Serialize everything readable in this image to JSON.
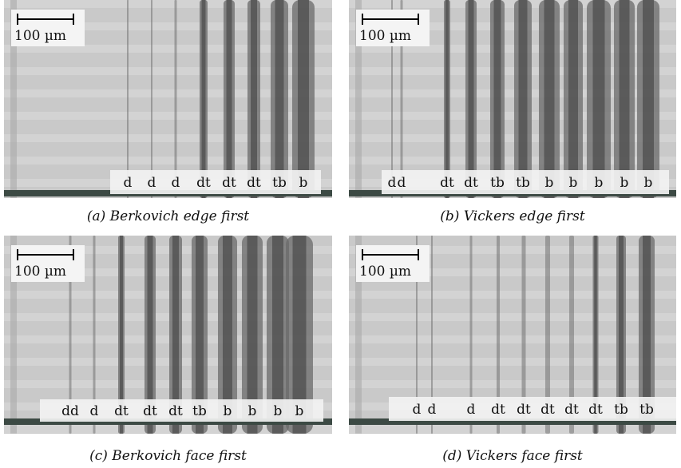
{
  "panels": [
    {
      "scale_label": "100 µm",
      "labels": [
        "d",
        "d",
        "d",
        "dt",
        "dt",
        "dt",
        "tb",
        "b"
      ],
      "caption": "(a) Berkovich edge first"
    },
    {
      "scale_label": "100 µm",
      "labels": [
        "d",
        "d",
        "dt",
        "dt",
        "tb",
        "tb",
        "b",
        "b",
        "b",
        "b",
        "b"
      ],
      "caption": "(b) Vickers edge first"
    },
    {
      "scale_label": "100 µm",
      "labels": [
        "dd",
        "d",
        "dt",
        "dt",
        "dt",
        "tb",
        "b",
        "b",
        "b",
        "b"
      ],
      "caption": "(c) Berkovich face first"
    },
    {
      "scale_label": "100 µm",
      "labels": [
        "d",
        "d",
        "d",
        "dt",
        "dt",
        "dt",
        "dt",
        "dt",
        "tb",
        "tb"
      ],
      "caption": "(d) Vickers face first"
    }
  ]
}
